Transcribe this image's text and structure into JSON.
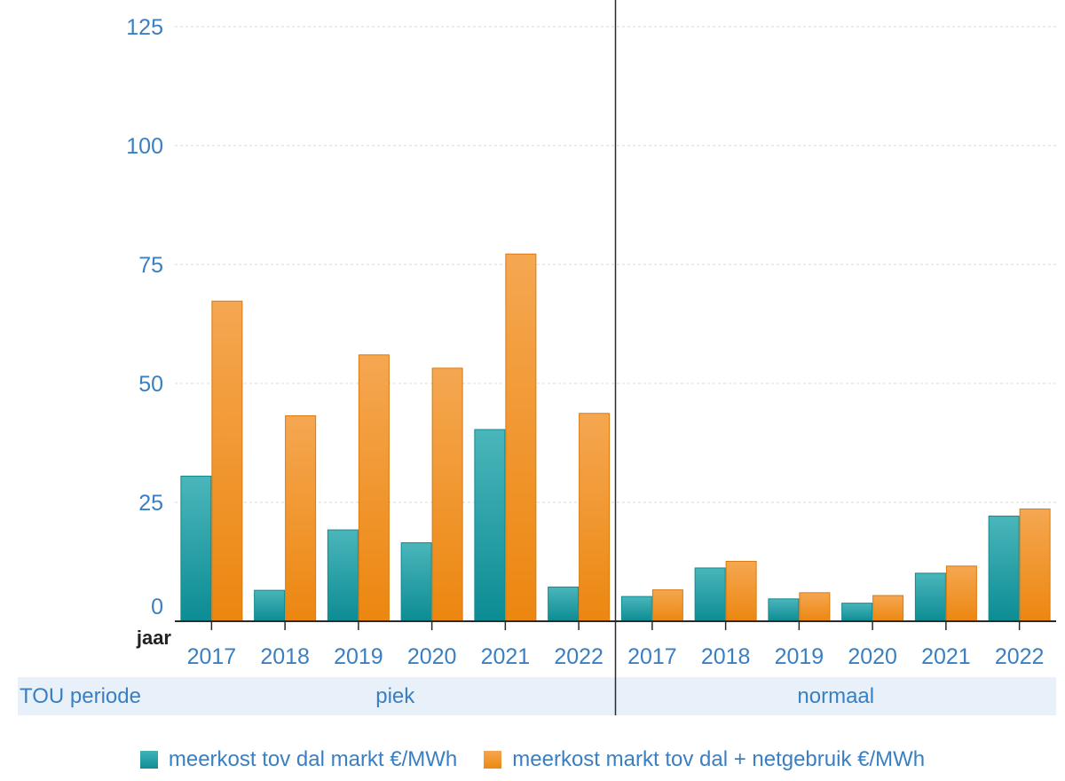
{
  "chart_data": {
    "type": "bar",
    "title": "",
    "xlabel": "jaar",
    "ylabel": "",
    "ylim": [
      0,
      125
    ],
    "yticks": [
      0,
      25,
      50,
      75,
      100,
      125
    ],
    "grid": true,
    "legend_position": "bottom",
    "row_label": "TOU periode",
    "groups": [
      {
        "name": "piek",
        "categories": [
          "2017",
          "2018",
          "2019",
          "2020",
          "2021",
          "2022"
        ],
        "series": [
          {
            "name": "meerkost tov dal markt €/MWh",
            "values": [
              30.5,
              6.5,
              19.2,
              16.5,
              40.3,
              7.2
            ]
          },
          {
            "name": "meerkost markt tov dal + netgebruik €/MWh",
            "values": [
              67.3,
              43.2,
              56.0,
              53.2,
              77.2,
              43.7
            ]
          }
        ]
      },
      {
        "name": "normaal",
        "categories": [
          "2017",
          "2018",
          "2019",
          "2020",
          "2021",
          "2022"
        ],
        "series": [
          {
            "name": "meerkost tov dal markt €/MWh",
            "values": [
              5.2,
              11.2,
              4.7,
              3.8,
              10.1,
              22.1
            ]
          },
          {
            "name": "meerkost markt tov dal + netgebruik €/MWh",
            "values": [
              6.6,
              12.6,
              6.0,
              5.4,
              11.6,
              23.6
            ]
          }
        ]
      }
    ]
  },
  "colors": {
    "teal": "#1a9aa0",
    "orange": "#f08d1e",
    "axis": "#2a2a2a",
    "grid": "#d9d9d9"
  }
}
